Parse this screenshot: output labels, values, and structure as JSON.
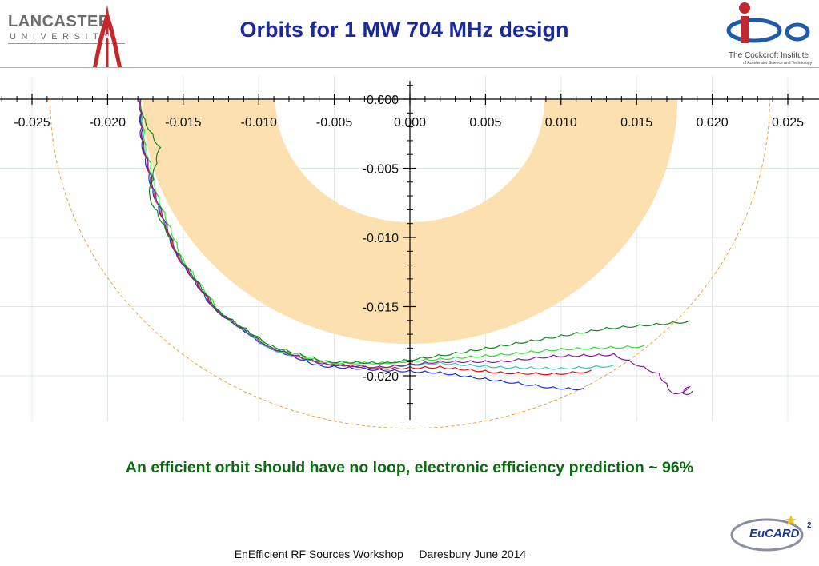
{
  "header": {
    "title": "Orbits for 1 MW 704 MHz design",
    "lancaster_logo": {
      "wordmark": "LANCASTER",
      "sub": "UNIVERSITY"
    },
    "cockcroft_logo": {
      "name": "The Cockcroft Institute",
      "tagline": "of Accelerator Science and Technology"
    }
  },
  "caption": "An efficient orbit should have no loop, electronic efficiency prediction ~ 96%",
  "footer": {
    "text": "EnEfficient RF Sources Workshop     Daresbury June 2014"
  },
  "eucard_logo": {
    "text": "EuCARD",
    "sup": "2"
  },
  "chart_data": {
    "type": "line",
    "title": "",
    "xlabel": "",
    "ylabel": "",
    "xlim": [
      -0.027,
      0.027
    ],
    "ylim": [
      -0.0225,
      0.001
    ],
    "x_ticks": [
      "-0.025",
      "-0.020",
      "-0.015",
      "-0.010",
      "-0.005",
      "0.000",
      "0.005",
      "0.010",
      "0.015",
      "0.020",
      "0.025"
    ],
    "y_ticks": [
      "0.000",
      "-0.005",
      "-0.010",
      "-0.015",
      "-0.020"
    ],
    "grid": true,
    "colors": {
      "band": "#fde0b0",
      "boundary": "#f0a030",
      "blue": "#2233cc",
      "red": "#e01010",
      "cyan": "#30c8c8",
      "lightgreen": "#30e030",
      "green": "#108a20",
      "purple": "#8a1a9a"
    },
    "shapes": [
      {
        "kind": "annulus",
        "center": [
          0.0,
          0.0
        ],
        "inner_radius": 0.0089,
        "outer_radius": 0.0177
      },
      {
        "kind": "dashed-arc",
        "center": [
          0.0,
          0.0
        ],
        "radius": 0.0238
      }
    ],
    "series": [
      {
        "color": "blue",
        "points": [
          [
            -0.0178,
            0.0
          ],
          [
            -0.0177,
            -0.003
          ],
          [
            -0.017,
            -0.0065
          ],
          [
            -0.0155,
            -0.011
          ],
          [
            -0.013,
            -0.015
          ],
          [
            -0.0095,
            -0.0178
          ],
          [
            -0.006,
            -0.0192
          ],
          [
            -0.002,
            -0.0195
          ],
          [
            0.002,
            -0.0197
          ],
          [
            0.006,
            -0.0203
          ],
          [
            0.0095,
            -0.0208
          ],
          [
            0.0115,
            -0.0209
          ]
        ]
      },
      {
        "color": "red",
        "points": [
          [
            -0.0178,
            0.0
          ],
          [
            -0.0176,
            -0.0032
          ],
          [
            -0.0169,
            -0.0067
          ],
          [
            -0.0154,
            -0.0112
          ],
          [
            -0.0128,
            -0.0152
          ],
          [
            -0.0093,
            -0.0179
          ],
          [
            -0.0058,
            -0.019
          ],
          [
            -0.002,
            -0.0194
          ],
          [
            0.002,
            -0.0193
          ],
          [
            0.006,
            -0.0197
          ],
          [
            0.0095,
            -0.0198
          ],
          [
            0.012,
            -0.0196
          ]
        ]
      },
      {
        "color": "cyan",
        "points": [
          [
            -0.0178,
            0.0
          ],
          [
            -0.0175,
            -0.0033
          ],
          [
            -0.0168,
            -0.0069
          ],
          [
            -0.0153,
            -0.0113
          ],
          [
            -0.0127,
            -0.0153
          ],
          [
            -0.0092,
            -0.018
          ],
          [
            -0.0056,
            -0.0191
          ],
          [
            -0.002,
            -0.0193
          ],
          [
            0.002,
            -0.019
          ],
          [
            0.006,
            -0.0193
          ],
          [
            0.01,
            -0.0194
          ],
          [
            0.0135,
            -0.0192
          ]
        ]
      },
      {
        "color": "lightgreen",
        "points": [
          [
            -0.0178,
            0.0
          ],
          [
            -0.0174,
            -0.0034
          ],
          [
            -0.0166,
            -0.0071
          ],
          [
            -0.015,
            -0.0115
          ],
          [
            -0.0124,
            -0.0155
          ],
          [
            -0.009,
            -0.018
          ],
          [
            -0.0054,
            -0.019
          ],
          [
            -0.0018,
            -0.019
          ],
          [
            0.002,
            -0.0187
          ],
          [
            0.006,
            -0.0184
          ],
          [
            0.01,
            -0.018
          ],
          [
            0.0155,
            -0.0178
          ]
        ]
      },
      {
        "color": "green",
        "points": [
          [
            -0.0178,
            0.0
          ],
          [
            -0.0175,
            -0.0015
          ],
          [
            -0.0165,
            -0.0035
          ],
          [
            -0.0172,
            -0.007
          ],
          [
            -0.0152,
            -0.0113
          ],
          [
            -0.0126,
            -0.0153
          ],
          [
            -0.0091,
            -0.0178
          ],
          [
            -0.0055,
            -0.0189
          ],
          [
            -0.0015,
            -0.019
          ],
          [
            0.003,
            -0.0183
          ],
          [
            0.008,
            -0.0174
          ],
          [
            0.013,
            -0.0165
          ],
          [
            0.0185,
            -0.016
          ]
        ]
      },
      {
        "color": "purple",
        "points": [
          [
            -0.0178,
            0.0
          ],
          [
            -0.0176,
            -0.0031
          ],
          [
            -0.0168,
            -0.0068
          ],
          [
            -0.0153,
            -0.0113
          ],
          [
            -0.0127,
            -0.0153
          ],
          [
            -0.0092,
            -0.0179
          ],
          [
            -0.0056,
            -0.0191
          ],
          [
            -0.002,
            -0.0193
          ],
          [
            0.002,
            -0.0189
          ],
          [
            0.006,
            -0.0189
          ],
          [
            0.0095,
            -0.0185
          ],
          [
            0.0135,
            -0.0184
          ],
          [
            0.0165,
            -0.0198
          ],
          [
            0.0175,
            -0.0213
          ],
          [
            0.0185,
            -0.0208
          ],
          [
            0.0181,
            -0.0213
          ],
          [
            0.0187,
            -0.0211
          ]
        ]
      }
    ]
  }
}
